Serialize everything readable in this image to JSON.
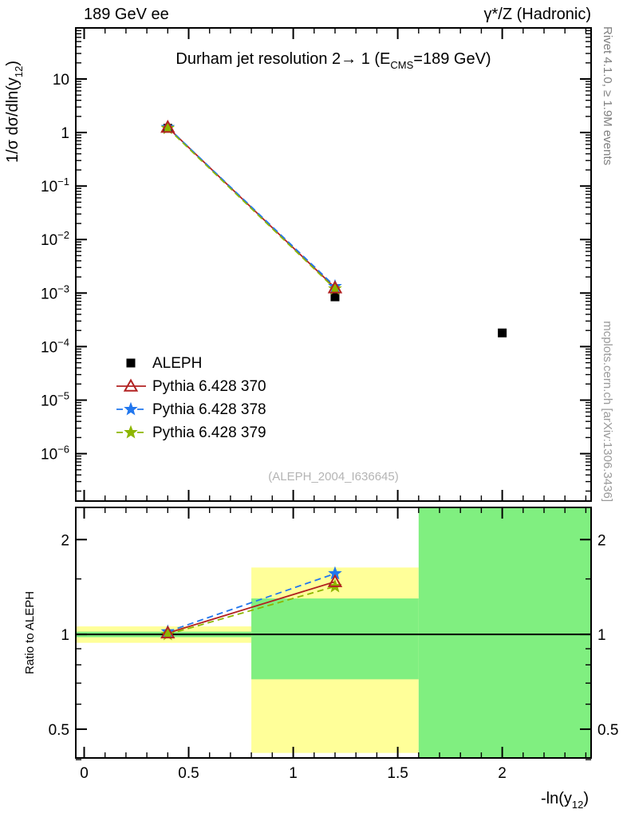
{
  "header": {
    "left": "189 GeV ee",
    "right": "γ*/Z (Hadronic)"
  },
  "side_notes": {
    "top": "Rivet 4.1.0, ≥ 1.9M events",
    "bottom": "mcplots.cern.ch [arXiv:1306.3436]"
  },
  "watermark": "(ALEPH_2004_I636645)",
  "title": {
    "pre": "Durham jet resolution 2→ 1 (E",
    "sub": "CMS",
    "post": "=189 GeV)"
  },
  "axis_labels": {
    "y_main": {
      "pre": "1/σ  dσ/dln(y",
      "sub": "12",
      "post": ")"
    },
    "y_ratio": "Ratio to ALEPH",
    "x": {
      "pre": "-ln(y",
      "sub": "12",
      "post": ")"
    }
  },
  "chart_data": {
    "type": "line",
    "title": "Durham jet resolution 2 → 1 (E_CMS = 189 GeV)",
    "xlabel": "-ln(y_12)",
    "ylabel": "1/σ dσ/dln(y_12)",
    "xlim": [
      0,
      2.42
    ],
    "x_major_ticks": [
      0,
      0.5,
      1,
      1.5,
      2
    ],
    "x_minor_step": 0.1,
    "main_panel": {
      "yscale": "log",
      "ylim": [
        1.3e-07,
        90
      ],
      "ytick_exponents": [
        1,
        0,
        -1,
        -2,
        -3,
        -4,
        -5,
        -6
      ]
    },
    "ratio_panel": {
      "yscale": "log",
      "ylim": [
        0.405,
        2.53
      ],
      "ylabel": "Ratio to ALEPH",
      "y_major_ticks": [
        0.5,
        1,
        2
      ],
      "y_minor_ticks": [
        0.4,
        0.6,
        0.7,
        0.8,
        0.9,
        1.5
      ],
      "reference_line": 1,
      "bands": [
        {
          "color": "#ffff99",
          "x0": 0,
          "x1": 0.8,
          "y0": 0.94,
          "y1": 1.06
        },
        {
          "color": "#80ef80",
          "x0": 0,
          "x1": 0.8,
          "y0": 0.98,
          "y1": 1.02
        },
        {
          "color": "#ffff99",
          "x0": 0.8,
          "x1": 1.6,
          "y0": 0.42,
          "y1": 1.63
        },
        {
          "color": "#80ef80",
          "x0": 0.8,
          "x1": 1.6,
          "y0": 0.72,
          "y1": 1.3
        },
        {
          "color": "#80ef80",
          "x0": 1.6,
          "x1": 2.42,
          "y0": 0.405,
          "y1": 2.53
        }
      ]
    },
    "series": [
      {
        "name": "ALEPH",
        "color": "#000000",
        "marker": "square",
        "line": "none",
        "x": [
          0.4,
          1.2,
          2.0
        ],
        "y": [
          1.2,
          0.00085,
          0.00018
        ]
      },
      {
        "name": "Pythia 6.428 370",
        "color": "#b22222",
        "marker": "triangle-open",
        "line": "solid",
        "x": [
          0.4,
          1.2
        ],
        "y": [
          1.25,
          0.00125
        ],
        "ratio": [
          1.01,
          1.47
        ]
      },
      {
        "name": "Pythia 6.428 378",
        "color": "#2277ee",
        "marker": "star",
        "line": "dashed",
        "x": [
          0.4,
          1.2
        ],
        "y": [
          1.25,
          0.00133
        ],
        "ratio": [
          1.02,
          1.56
        ]
      },
      {
        "name": "Pythia 6.428 379",
        "color": "#8db600",
        "marker": "star",
        "line": "dashed",
        "x": [
          0.4,
          1.2
        ],
        "y": [
          1.2,
          0.0012
        ],
        "ratio": [
          1.0,
          1.42
        ]
      }
    ]
  }
}
